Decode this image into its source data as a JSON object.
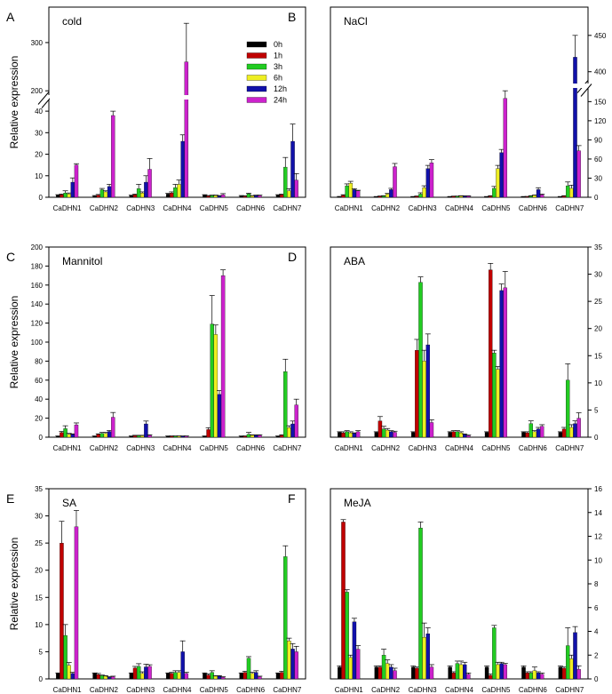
{
  "figure": {
    "ylabel": "Relative expression",
    "legend": {
      "entries": [
        "0h",
        "1h",
        "3h",
        "6h",
        "12h",
        "24h"
      ]
    }
  },
  "series_colors": [
    "#000000",
    "#c00000",
    "#22cc22",
    "#eeee22",
    "#1111aa",
    "#cc22cc"
  ],
  "chart_data": [
    {
      "type": "bar",
      "panel": "A",
      "title": "cold",
      "ylabel": "Relative expression",
      "axis_side": "left",
      "broken_axis": true,
      "categories": [
        "CaDHN1",
        "CaDHN2",
        "CaDHN3",
        "CaDHN4",
        "CaDHN5",
        "CaDHN6",
        "CaDHN7"
      ],
      "yticks_lower": [
        0,
        10,
        20,
        30,
        40
      ],
      "yticks_upper": [
        200,
        300
      ],
      "series": [
        {
          "name": "0h",
          "values": [
            1,
            0.6,
            0.8,
            1.5,
            1,
            0.6,
            1
          ]
        },
        {
          "name": "1h",
          "values": [
            1.2,
            1,
            1.2,
            2,
            0.6,
            0.5,
            1.2
          ]
        },
        {
          "name": "3h",
          "values": [
            2,
            3.5,
            4,
            4.5,
            0.8,
            1.6,
            14
          ]
        },
        {
          "name": "6h",
          "values": [
            1.5,
            2.5,
            2,
            6,
            0.8,
            0.6,
            3
          ]
        },
        {
          "name": "12h",
          "values": [
            7,
            5,
            7,
            26,
            0.6,
            0.8,
            26
          ]
        },
        {
          "name": "24h",
          "values": [
            15,
            38,
            13,
            260,
            1.2,
            0.8,
            8
          ]
        }
      ],
      "errors": [
        [
          0.2,
          0.2,
          0.2,
          0.3,
          0.2,
          0.2,
          0.2
        ],
        [
          0.3,
          0.3,
          0.3,
          0.5,
          0.2,
          0.2,
          0.3
        ],
        [
          1,
          0.6,
          2,
          1.5,
          0.2,
          0.3,
          4.5
        ],
        [
          0.5,
          0.5,
          0.5,
          2,
          0.2,
          0.2,
          1
        ],
        [
          2,
          1,
          3,
          3,
          0.2,
          0.2,
          8
        ],
        [
          0.6,
          2,
          5,
          80,
          0.5,
          0.2,
          3
        ]
      ]
    },
    {
      "type": "bar",
      "panel": "B",
      "title": "NaCl",
      "axis_side": "right",
      "broken_axis": true,
      "categories": [
        "CaDHN1",
        "CaDHN2",
        "CaDHN3",
        "CaDHN4",
        "CaDHN5",
        "CaDHN6",
        "CaDHN7"
      ],
      "yticks_lower": [
        0,
        30,
        60,
        90,
        120,
        150
      ],
      "yticks_upper": [
        400,
        450
      ],
      "series": [
        {
          "name": "0h",
          "values": [
            1,
            1,
            1,
            1,
            1,
            1,
            1
          ]
        },
        {
          "name": "1h",
          "values": [
            3,
            1.5,
            1.5,
            1.5,
            2,
            1,
            2
          ]
        },
        {
          "name": "3h",
          "values": [
            18,
            2,
            5,
            1.5,
            14,
            2,
            18
          ]
        },
        {
          "name": "6h",
          "values": [
            22,
            5,
            15,
            2,
            45,
            3,
            14
          ]
        },
        {
          "name": "12h",
          "values": [
            12,
            12,
            45,
            2,
            70,
            12,
            420
          ]
        },
        {
          "name": "24h",
          "values": [
            10,
            48,
            54,
            2,
            155,
            4,
            73
          ]
        }
      ],
      "errors": [
        [
          0.3,
          0.2,
          0.2,
          0.2,
          0.2,
          0.2,
          0.2
        ],
        [
          1,
          0.5,
          0.5,
          0.3,
          0.5,
          0.3,
          0.5
        ],
        [
          3,
          0.5,
          2,
          0.3,
          3,
          0.5,
          6
        ],
        [
          3,
          1,
          3,
          0.5,
          5,
          0.5,
          5
        ],
        [
          1.5,
          2,
          5,
          0.3,
          5,
          3,
          30
        ],
        [
          1,
          5,
          5,
          0.3,
          12,
          1,
          8
        ]
      ]
    },
    {
      "type": "bar",
      "panel": "C",
      "title": "Mannitol",
      "ylabel": "Relative expression",
      "axis_side": "left",
      "categories": [
        "CaDHN1",
        "CaDHN2",
        "CaDHN3",
        "CaDHN4",
        "CaDHN5",
        "CaDHN6",
        "CaDHN7"
      ],
      "ylim": [
        0,
        200
      ],
      "yticks": [
        0,
        20,
        40,
        60,
        80,
        100,
        120,
        140,
        160,
        180,
        200
      ],
      "series": [
        {
          "name": "0h",
          "values": [
            1,
            1,
            1,
            1,
            1,
            1,
            1
          ]
        },
        {
          "name": "1h",
          "values": [
            5,
            3,
            1.5,
            1,
            8,
            1,
            2
          ]
        },
        {
          "name": "3h",
          "values": [
            9,
            4,
            1.5,
            1,
            119,
            3,
            69
          ]
        },
        {
          "name": "6h",
          "values": [
            3,
            4,
            1.5,
            1,
            108,
            2,
            10
          ]
        },
        {
          "name": "12h",
          "values": [
            3,
            6,
            14,
            1,
            45,
            2,
            14
          ]
        },
        {
          "name": "24h",
          "values": [
            13,
            21,
            2,
            1,
            170,
            2,
            34
          ]
        }
      ],
      "errors": [
        [
          0.3,
          0.3,
          0.3,
          0.3,
          0.3,
          0.3,
          0.3
        ],
        [
          1,
          0.5,
          0.5,
          0.3,
          2,
          0.3,
          0.5
        ],
        [
          3,
          1,
          0.5,
          0.3,
          30,
          2,
          13
        ],
        [
          1,
          1,
          0.5,
          0.3,
          10,
          0.5,
          2
        ],
        [
          0.5,
          1,
          3,
          0.3,
          4,
          0.5,
          3
        ],
        [
          2,
          5,
          0.5,
          0.3,
          6,
          0.5,
          6
        ]
      ]
    },
    {
      "type": "bar",
      "panel": "D",
      "title": "ABA",
      "axis_side": "right",
      "categories": [
        "CaDHN1",
        "CaDHN2",
        "CaDHN3",
        "CaDHN4",
        "CaDHN5",
        "CaDHN6",
        "CaDHN7"
      ],
      "ylim": [
        0,
        35
      ],
      "yticks": [
        0,
        5,
        10,
        15,
        20,
        25,
        30,
        35
      ],
      "series": [
        {
          "name": "0h",
          "values": [
            0.9,
            0.9,
            0.9,
            0.9,
            0.9,
            0.9,
            0.9
          ]
        },
        {
          "name": "1h",
          "values": [
            0.8,
            3,
            16,
            1,
            30.8,
            0.8,
            1.5
          ]
        },
        {
          "name": "3h",
          "values": [
            1,
            1.5,
            28.5,
            1,
            15.5,
            2.5,
            10.5
          ]
        },
        {
          "name": "6h",
          "values": [
            0.8,
            1.3,
            14,
            0.8,
            12.5,
            1,
            1.8
          ]
        },
        {
          "name": "12h",
          "values": [
            0.7,
            1,
            17,
            0.5,
            27,
            1.5,
            2.5
          ]
        },
        {
          "name": "24h",
          "values": [
            1,
            0.9,
            2.7,
            0.3,
            27.5,
            2,
            3.5
          ]
        }
      ],
      "errors": [
        [
          0.1,
          0.1,
          0.1,
          0.1,
          0.1,
          0.1,
          0.1
        ],
        [
          0.2,
          0.8,
          2,
          0.2,
          1.2,
          0.2,
          0.3
        ],
        [
          0.2,
          0.5,
          1,
          0.2,
          0.5,
          0.5,
          3
        ],
        [
          0.2,
          0.3,
          2,
          0.2,
          0.5,
          0.2,
          0.5
        ],
        [
          0.1,
          0.2,
          2,
          0.1,
          1.2,
          0.3,
          0.5
        ],
        [
          0.2,
          0.2,
          0.5,
          0.1,
          3,
          0.3,
          1
        ]
      ]
    },
    {
      "type": "bar",
      "panel": "E",
      "title": "SA",
      "ylabel": "Relative expression",
      "axis_side": "left",
      "categories": [
        "CaDHN1",
        "CaDHN2",
        "CaDHN3",
        "CaDHN4",
        "CaDHN5",
        "CaDHN6",
        "CaDHN7"
      ],
      "ylim": [
        0,
        35
      ],
      "yticks": [
        0,
        5,
        10,
        15,
        20,
        25,
        30,
        35
      ],
      "series": [
        {
          "name": "0h",
          "values": [
            1,
            1,
            1,
            1,
            1,
            1,
            1
          ]
        },
        {
          "name": "1h",
          "values": [
            25,
            0.8,
            2,
            1,
            0.7,
            1.2,
            1.2
          ]
        },
        {
          "name": "3h",
          "values": [
            8,
            0.6,
            2.3,
            1.2,
            1.2,
            3.8,
            22.5
          ]
        },
        {
          "name": "6h",
          "values": [
            2.5,
            0.5,
            1,
            1.2,
            0.5,
            1,
            7
          ]
        },
        {
          "name": "12h",
          "values": [
            1,
            0.3,
            2.2,
            5,
            0.5,
            1.2,
            5.5
          ]
        },
        {
          "name": "24h",
          "values": [
            28,
            0.4,
            2.3,
            1,
            0.3,
            0.4,
            5
          ]
        }
      ],
      "errors": [
        [
          0.1,
          0.1,
          0.1,
          0.1,
          0.1,
          0.1,
          0.1
        ],
        [
          4,
          0.2,
          0.3,
          0.2,
          0.2,
          0.2,
          0.2
        ],
        [
          2,
          0.1,
          0.5,
          0.3,
          0.3,
          0.3,
          2
        ],
        [
          0.5,
          0.1,
          0.3,
          0.3,
          0.1,
          0.2,
          0.5
        ],
        [
          0.2,
          0.1,
          0.5,
          2,
          0.1,
          0.3,
          1
        ],
        [
          3,
          0.1,
          0.3,
          0.2,
          0.1,
          0.1,
          1
        ]
      ]
    },
    {
      "type": "bar",
      "panel": "F",
      "title": "MeJA",
      "axis_side": "right",
      "categories": [
        "CaDHN1",
        "CaDHN2",
        "CaDHN3",
        "CaDHN4",
        "CaDHN5",
        "CaDHN6",
        "CaDHN7"
      ],
      "ylim": [
        0,
        16
      ],
      "yticks": [
        0,
        2,
        4,
        6,
        8,
        10,
        12,
        14,
        16
      ],
      "series": [
        {
          "name": "0h",
          "values": [
            1,
            1,
            1,
            1,
            1,
            1,
            1
          ]
        },
        {
          "name": "1h",
          "values": [
            13.2,
            1,
            0.9,
            0.5,
            0.3,
            0.5,
            0.9
          ]
        },
        {
          "name": "3h",
          "values": [
            7.3,
            2,
            12.7,
            1.3,
            4.3,
            0.5,
            2.8
          ]
        },
        {
          "name": "6h",
          "values": [
            1.8,
            1.3,
            3.5,
            1.2,
            1.2,
            0.7,
            1.7
          ]
        },
        {
          "name": "12h",
          "values": [
            4.8,
            1,
            3.8,
            1.2,
            1.3,
            0.5,
            3.9
          ]
        },
        {
          "name": "24h",
          "values": [
            2.5,
            0.7,
            1,
            0.4,
            1.2,
            0.4,
            0.8
          ]
        }
      ],
      "errors": [
        [
          0.1,
          0.1,
          0.1,
          0.1,
          0.1,
          0.1,
          0.1
        ],
        [
          0.2,
          0.1,
          0.1,
          0.1,
          0.1,
          0.1,
          0.1
        ],
        [
          0.2,
          0.5,
          0.5,
          0.2,
          0.2,
          0.1,
          1.5
        ],
        [
          0.2,
          0.3,
          1.2,
          0.3,
          0.2,
          0.3,
          0.3
        ],
        [
          0.3,
          0.2,
          0.5,
          0.2,
          0.1,
          0.1,
          0.5
        ],
        [
          0.3,
          0.2,
          0.2,
          0.1,
          0.1,
          0.1,
          0.3
        ]
      ]
    }
  ]
}
